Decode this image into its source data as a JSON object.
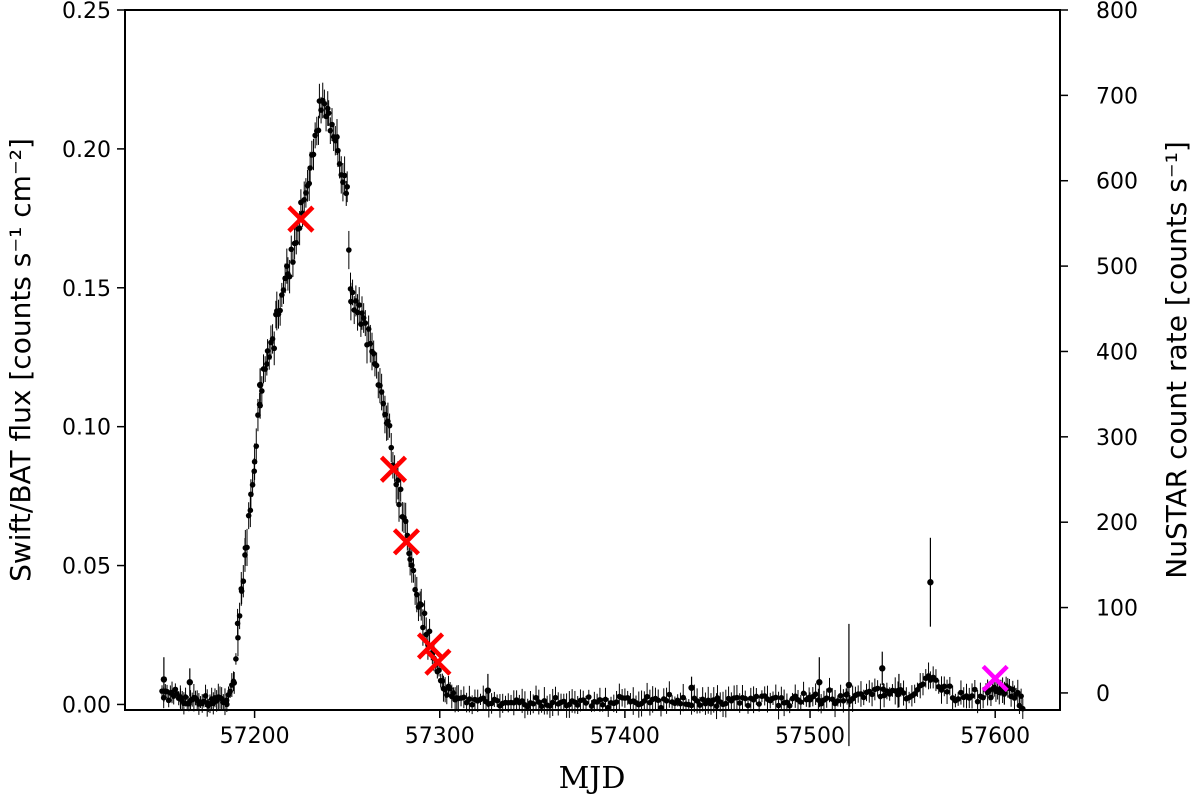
{
  "chart_data": {
    "type": "scatter",
    "title": "",
    "xlabel": "MJD",
    "ylabel_left": "Swift/BAT flux [counts s⁻¹ cm⁻²]",
    "ylabel_right": "NuSTAR count rate [counts s⁻¹]",
    "xlim": [
      57130,
      57635
    ],
    "ylim_left": [
      -0.002,
      0.25
    ],
    "ylim_right": [
      -20,
      800
    ],
    "xticks": [
      57200,
      57300,
      57400,
      57500,
      57600
    ],
    "yticks_left": [
      "0.00",
      "0.05",
      "0.10",
      "0.15",
      "0.20",
      "0.25"
    ],
    "yticks_right": [
      0,
      100,
      200,
      300,
      400,
      500,
      600,
      700,
      800
    ],
    "grid": false,
    "colors": {
      "bat": "#000000",
      "nustar_main": "#ff0000",
      "nustar_late": "#ff00ff"
    },
    "series": [
      {
        "name": "",
        "color": "#000000",
        "anchors": [
          [
            57150,
            0.004
          ],
          [
            57160,
            0.002
          ],
          [
            57175,
            0.001
          ],
          [
            57185,
            0.002
          ],
          [
            57189,
            0.008
          ],
          [
            57191,
            0.025
          ],
          [
            57193,
            0.04
          ],
          [
            57195,
            0.055
          ],
          [
            57198,
            0.075
          ],
          [
            57200,
            0.087
          ],
          [
            57203,
            0.112
          ],
          [
            57207,
            0.125
          ],
          [
            57212,
            0.138
          ],
          [
            57218,
            0.155
          ],
          [
            57225,
            0.175
          ],
          [
            57230,
            0.195
          ],
          [
            57235,
            0.212
          ],
          [
            57240,
            0.212
          ],
          [
            57245,
            0.205
          ],
          [
            57250,
            0.18
          ],
          [
            57252,
            0.148
          ],
          [
            57258,
            0.14
          ],
          [
            57265,
            0.122
          ],
          [
            57272,
            0.098
          ],
          [
            57278,
            0.075
          ],
          [
            57284,
            0.055
          ],
          [
            57290,
            0.035
          ],
          [
            57296,
            0.018
          ],
          [
            57302,
            0.006
          ],
          [
            57310,
            0.002
          ],
          [
            57325,
            0.001
          ],
          [
            57400,
            0.001
          ],
          [
            57450,
            0.001
          ],
          [
            57500,
            0.002
          ],
          [
            57520,
            0.003
          ],
          [
            57540,
            0.005
          ],
          [
            57555,
            0.003
          ],
          [
            57565,
            0.01
          ],
          [
            57580,
            0.002
          ],
          [
            57595,
            0.004
          ],
          [
            57605,
            0.006
          ],
          [
            57615,
            0.001
          ]
        ],
        "outliers": [
          [
            57151,
            0.009,
            0.008
          ],
          [
            57165,
            0.008,
            0.005
          ],
          [
            57203,
            0.115,
            0.006
          ],
          [
            57326,
            0.005,
            0.006
          ],
          [
            57436,
            0.006,
            0.004
          ],
          [
            57505,
            0.008,
            0.009
          ],
          [
            57521,
            0.007,
            0.022
          ],
          [
            57539,
            0.013,
            0.006
          ],
          [
            57565,
            0.044,
            0.016
          ],
          [
            57548,
            0.005,
            0.006
          ]
        ]
      }
    ],
    "nustar_marks": [
      {
        "mjd": 57225,
        "rate": 555,
        "color": "#ff0000"
      },
      {
        "mjd": 57275,
        "rate": 262,
        "color": "#ff0000"
      },
      {
        "mjd": 57282,
        "rate": 177,
        "color": "#ff0000"
      },
      {
        "mjd": 57295,
        "rate": 55,
        "color": "#ff0000"
      },
      {
        "mjd": 57299,
        "rate": 36,
        "color": "#ff0000"
      },
      {
        "mjd": 57600,
        "rate": 17,
        "color": "#ff00ff"
      }
    ]
  }
}
